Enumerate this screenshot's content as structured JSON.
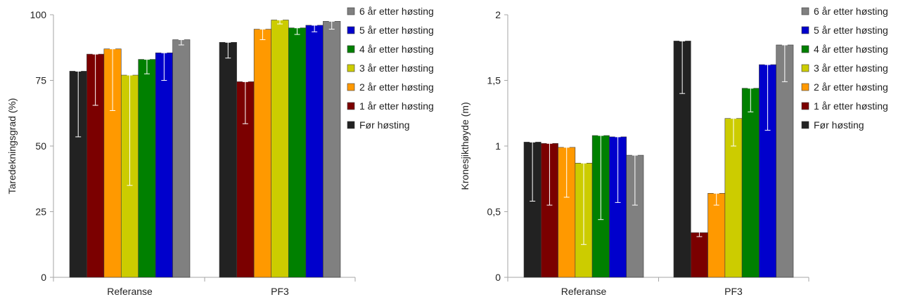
{
  "legend": [
    "6 år etter høsting",
    "5 år etter høsting",
    "4 år etter høsting",
    "3 år etter høsting",
    "2 år etter høsting",
    "1 år etter høsting",
    "Før høsting"
  ],
  "chart_data": [
    {
      "type": "bar",
      "title": "",
      "xlabel": "",
      "ylabel": "Taredekningsgrad (%)",
      "ylim": [
        0,
        100
      ],
      "yticks": [
        "0",
        "25",
        "50",
        "75",
        "100"
      ],
      "ytick_values": [
        0,
        25,
        50,
        75,
        100
      ],
      "categories": [
        "Referanse",
        "PF3"
      ],
      "grid": false,
      "legend_position": "right",
      "series": [
        {
          "name": "Før høsting",
          "color": "#222222",
          "values": [
            78.5,
            89.5
          ],
          "error_low": [
            53.5,
            83.5
          ],
          "error_high": [
            78.5,
            89.5
          ]
        },
        {
          "name": "1 år etter høsting",
          "color": "#7b0000",
          "values": [
            85,
            74.5
          ],
          "error_low": [
            65.5,
            58.5
          ],
          "error_high": [
            85,
            74.5
          ]
        },
        {
          "name": "2 år etter høsting",
          "color": "#ff9900",
          "values": [
            87,
            94.5
          ],
          "error_low": [
            63.5,
            90.5
          ],
          "error_high": [
            87,
            94.5
          ]
        },
        {
          "name": "3 år etter høsting",
          "color": "#cccc00",
          "values": [
            77,
            98
          ],
          "error_low": [
            35,
            96.5
          ],
          "error_high": [
            77,
            98
          ]
        },
        {
          "name": "4 år etter høsting",
          "color": "#008000",
          "values": [
            83,
            95
          ],
          "error_low": [
            77.5,
            92.5
          ],
          "error_high": [
            83,
            95
          ]
        },
        {
          "name": "5 år etter høsting",
          "color": "#0000cc",
          "values": [
            85.5,
            96
          ],
          "error_low": [
            75,
            93.5
          ],
          "error_high": [
            85.5,
            96
          ]
        },
        {
          "name": "6 år etter høsting",
          "color": "#808080",
          "values": [
            90.5,
            97.5
          ],
          "error_low": [
            88.5,
            94.5
          ],
          "error_high": [
            90.5,
            97.5
          ]
        }
      ]
    },
    {
      "type": "bar",
      "title": "",
      "xlabel": "",
      "ylabel": "Kronesjikthøyde (m)",
      "ylim": [
        0,
        2
      ],
      "yticks": [
        "0",
        "0,5",
        "1",
        "1,5",
        "2"
      ],
      "ytick_values": [
        0,
        0.5,
        1,
        1.5,
        2
      ],
      "categories": [
        "Referanse",
        "PF3"
      ],
      "grid": false,
      "legend_position": "right",
      "series": [
        {
          "name": "Før høsting",
          "color": "#222222",
          "values": [
            1.03,
            1.8
          ],
          "error_low": [
            0.58,
            1.4
          ],
          "error_high": [
            1.03,
            1.8
          ]
        },
        {
          "name": "1 år etter høsting",
          "color": "#7b0000",
          "values": [
            1.02,
            0.34
          ],
          "error_low": [
            0.55,
            0.31
          ],
          "error_high": [
            1.02,
            0.36
          ]
        },
        {
          "name": "2 år etter høsting",
          "color": "#ff9900",
          "values": [
            0.99,
            0.64
          ],
          "error_low": [
            0.61,
            0.55
          ],
          "error_high": [
            0.99,
            0.64
          ]
        },
        {
          "name": "3 år etter høsting",
          "color": "#cccc00",
          "values": [
            0.87,
            1.21
          ],
          "error_low": [
            0.25,
            1.0
          ],
          "error_high": [
            0.87,
            1.21
          ]
        },
        {
          "name": "4 år etter høsting",
          "color": "#008000",
          "values": [
            1.08,
            1.44
          ],
          "error_low": [
            0.44,
            1.26
          ],
          "error_high": [
            1.08,
            1.44
          ]
        },
        {
          "name": "5 år etter høsting",
          "color": "#0000cc",
          "values": [
            1.07,
            1.62
          ],
          "error_low": [
            0.57,
            1.12
          ],
          "error_high": [
            1.07,
            1.62
          ]
        },
        {
          "name": "6 år etter høsting",
          "color": "#808080",
          "values": [
            0.93,
            1.77
          ],
          "error_low": [
            0.55,
            1.49
          ],
          "error_high": [
            0.93,
            1.77
          ]
        }
      ]
    }
  ]
}
